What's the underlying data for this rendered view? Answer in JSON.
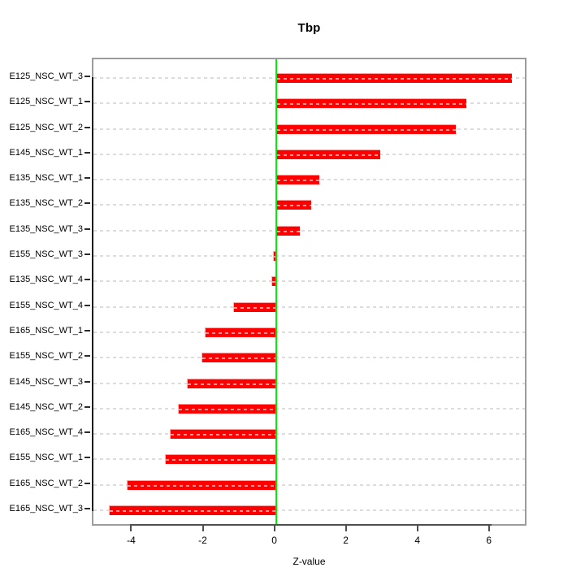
{
  "chart_data": {
    "type": "bar",
    "orientation": "horizontal",
    "title": "Tbp",
    "xlabel": "Z-value",
    "ylabel": "",
    "categories": [
      "E125_NSC_WT_3",
      "E125_NSC_WT_1",
      "E125_NSC_WT_2",
      "E145_NSC_WT_1",
      "E135_NSC_WT_1",
      "E135_NSC_WT_2",
      "E135_NSC_WT_3",
      "E155_NSC_WT_3",
      "E135_NSC_WT_4",
      "E155_NSC_WT_4",
      "E165_NSC_WT_1",
      "E155_NSC_WT_2",
      "E145_NSC_WT_3",
      "E145_NSC_WT_2",
      "E165_NSC_WT_4",
      "E155_NSC_WT_1",
      "E165_NSC_WT_2",
      "E165_NSC_WT_3"
    ],
    "values": [
      6.6,
      5.32,
      5.03,
      2.92,
      1.22,
      0.98,
      0.66,
      -0.08,
      -0.13,
      -1.19,
      -1.99,
      -2.09,
      -2.48,
      -2.74,
      -2.96,
      -3.11,
      -4.18,
      -4.66
    ],
    "x_ticks": [
      -4,
      -2,
      0,
      2,
      4,
      6
    ],
    "xlim": [
      -5.1,
      7.05
    ],
    "grid": true,
    "legend": null,
    "colors": {
      "bar": "#ff0000",
      "zero_line": "#00ee00",
      "grid_line": "#dcdcdc",
      "box_border": "#9c9c9c",
      "axis_line": "#1c1c1c"
    }
  }
}
